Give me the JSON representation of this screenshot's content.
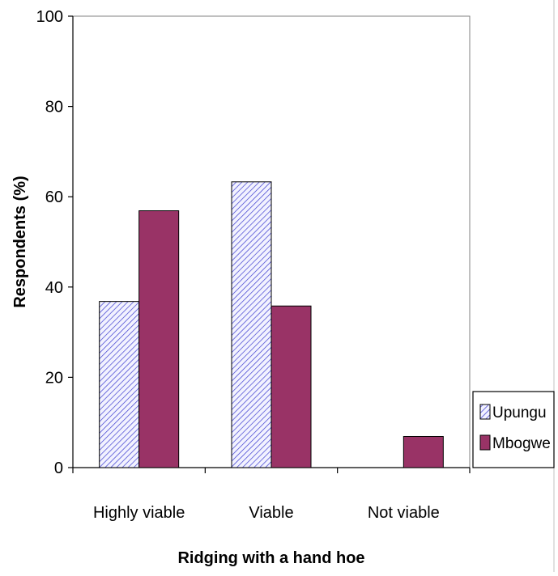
{
  "colors": {
    "upungu_fill": "#f2f2ff",
    "upungu_hatch": "#3b3bcf",
    "mbogwe_fill": "#993366",
    "plot_border": "#808080",
    "axis": "#000000"
  },
  "chart_data": {
    "type": "bar",
    "categories": [
      "Highly viable",
      "Viable",
      "Not viable"
    ],
    "series": [
      {
        "name": "Upungu",
        "values": [
          36.8,
          63.3,
          0
        ],
        "pattern": "diagonal-hatch"
      },
      {
        "name": "Mbogwe",
        "values": [
          56.9,
          35.8,
          6.9
        ]
      }
    ],
    "title": "",
    "xlabel": "Ridging with a hand hoe",
    "ylabel": "Respondents (%)",
    "ylim": [
      0,
      100
    ],
    "yticks": [
      "0",
      "20",
      "40",
      "60",
      "80",
      "100"
    ],
    "grid": false,
    "legend": "right"
  }
}
